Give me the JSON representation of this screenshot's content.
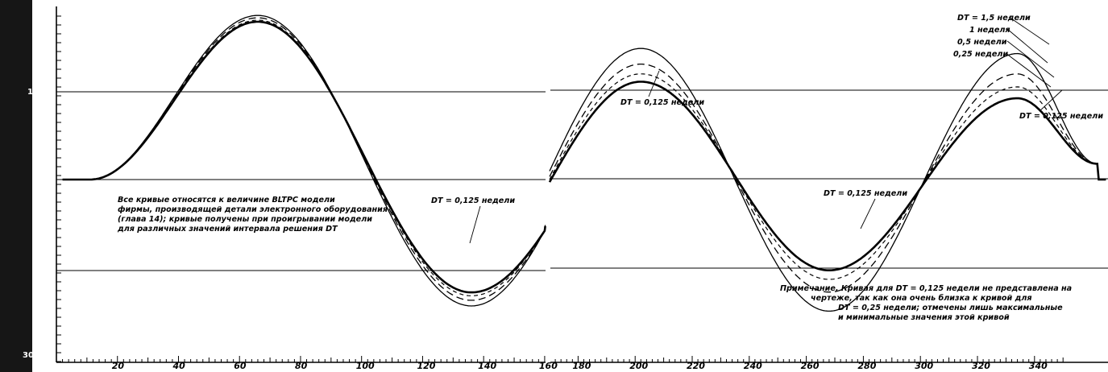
{
  "chart_data": {
    "type": "line",
    "x_ticks": [
      20,
      40,
      60,
      80,
      100,
      120,
      140,
      160,
      180,
      200,
      220,
      240,
      260,
      280,
      300,
      320,
      340
    ],
    "y_ticks": [
      "1",
      "",
      "30"
    ],
    "xlim": [
      0,
      360
    ],
    "note_left": [
      "Все кривые относятся к величине BLTPC модели",
      "фирмы, производящей детали электронного оборудования",
      "(глава 14); кривые получены при проигрывании модели",
      "для различных значений интервала решения DT"
    ],
    "note_right": [
      "Примечание. Кривая для DT = 0,125 недели не представлена на",
      "чертеже, так как она очень близка к кривой для",
      "DT = 0,25 недели; отмечены лишь максимальные",
      "и минимальные значения этой кривой"
    ],
    "labels": {
      "dt_0125_a": "DT = 0,125 недели",
      "dt_0125_b": "DT = 0,125 недели",
      "dt_0125_c": "DT = 0,125 недели",
      "dt_0125_d": "DT = 0,125 недели"
    },
    "legend": {
      "l1": "DT = 1,5 недели",
      "l2": "1  неделя",
      "l3": "0,5  недели",
      "l4": "0,25 недели"
    },
    "series": [
      {
        "name": "DT = 1,5 недели",
        "amps": [
          1.1,
          1.0,
          1.0,
          1.0,
          1.0,
          1.0
        ]
      },
      {
        "name": "1 неделя",
        "amps": [
          1.06,
          1.0,
          1.0,
          1.0,
          1.0,
          1.0
        ]
      },
      {
        "name": "0,5 недели",
        "amps": [
          1.03,
          1.0,
          1.0,
          1.0,
          1.0,
          1.0
        ]
      },
      {
        "name": "0,25 недели",
        "amps": [
          1.0,
          1.0,
          1.0,
          1.0,
          1.0,
          1.0
        ]
      }
    ]
  }
}
